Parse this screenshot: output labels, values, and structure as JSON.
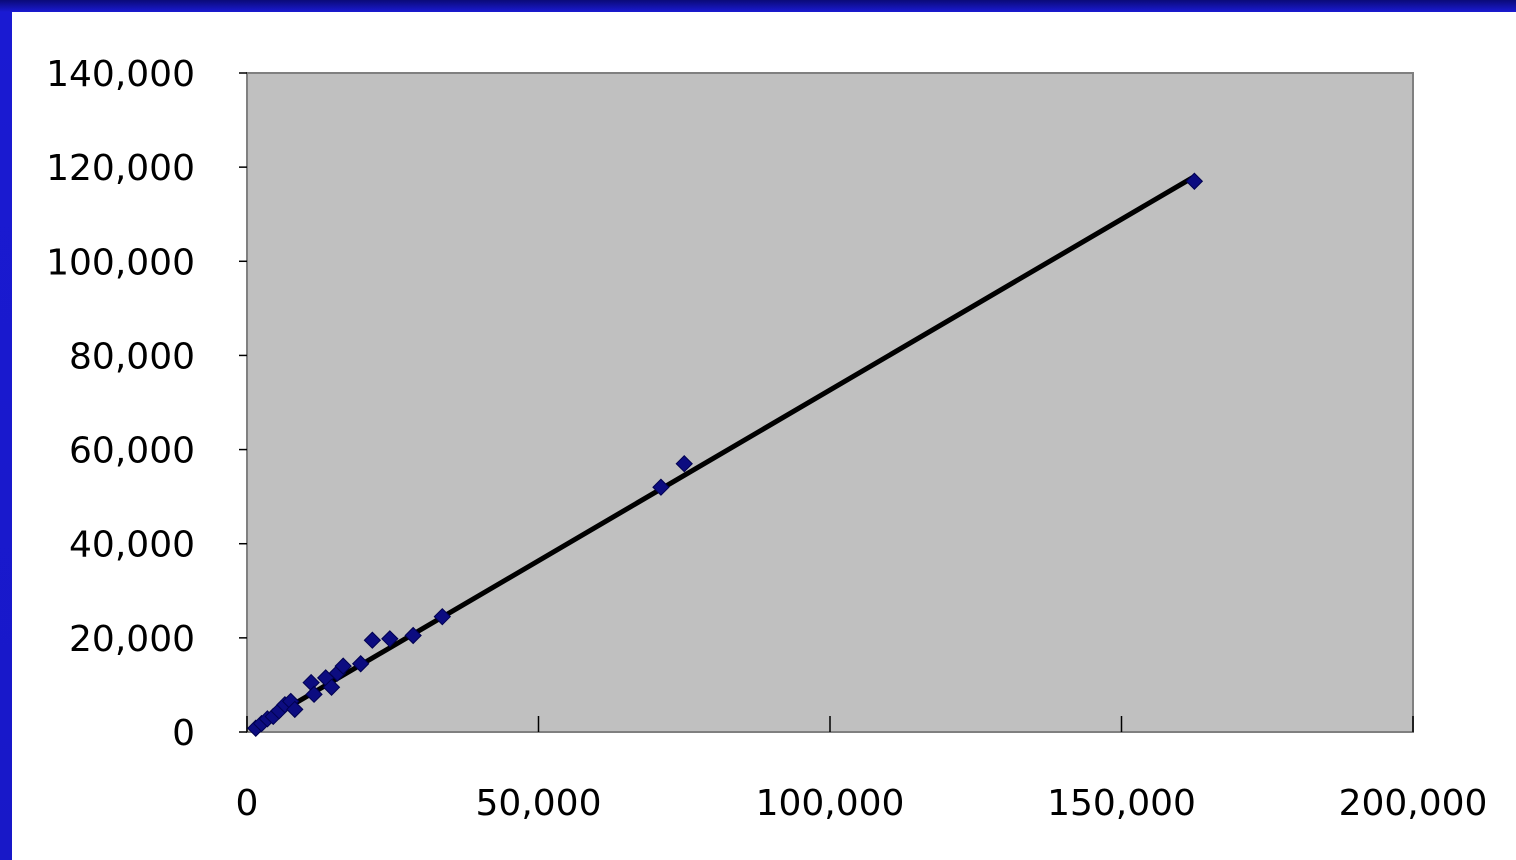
{
  "chart_data": {
    "type": "scatter",
    "title": "",
    "xlabel": "",
    "ylabel": "",
    "xlim": [
      0,
      200000
    ],
    "ylim": [
      0,
      140000
    ],
    "x_ticks": [
      0,
      50000,
      100000,
      150000,
      200000
    ],
    "y_ticks": [
      0,
      20000,
      40000,
      60000,
      80000,
      100000,
      120000,
      140000
    ],
    "x_tick_labels": [
      "0",
      "50,000",
      "100,000",
      "150,000",
      "200,000"
    ],
    "y_tick_labels": [
      "0",
      "20,000",
      "40,000",
      "60,000",
      "80,000",
      "100,000",
      "120,000",
      "140,000"
    ],
    "grid": false,
    "legend": "none",
    "plot_background": "#c0c0c0",
    "marker_color": "#0c0c80",
    "trendline_color": "#000000",
    "series": [
      {
        "values": [
          {
            "x": 1500,
            "y": 800
          },
          {
            "x": 2500,
            "y": 1800
          },
          {
            "x": 3500,
            "y": 2800
          },
          {
            "x": 4500,
            "y": 3300
          },
          {
            "x": 5500,
            "y": 4500
          },
          {
            "x": 6500,
            "y": 5800
          },
          {
            "x": 7500,
            "y": 6500
          },
          {
            "x": 8200,
            "y": 4800
          },
          {
            "x": 11000,
            "y": 10500
          },
          {
            "x": 11500,
            "y": 8000
          },
          {
            "x": 13500,
            "y": 11500
          },
          {
            "x": 14500,
            "y": 9500
          },
          {
            "x": 15500,
            "y": 12500
          },
          {
            "x": 16500,
            "y": 14000
          },
          {
            "x": 19500,
            "y": 14500
          },
          {
            "x": 21500,
            "y": 19500
          },
          {
            "x": 24500,
            "y": 19800
          },
          {
            "x": 28500,
            "y": 20500
          },
          {
            "x": 33500,
            "y": 24500
          },
          {
            "x": 71000,
            "y": 52000
          },
          {
            "x": 75000,
            "y": 57000
          },
          {
            "x": 162500,
            "y": 117000
          }
        ],
        "trendline": [
          {
            "x": 1500,
            "y": 1200
          },
          {
            "x": 162500,
            "y": 118000
          }
        ]
      }
    ]
  }
}
